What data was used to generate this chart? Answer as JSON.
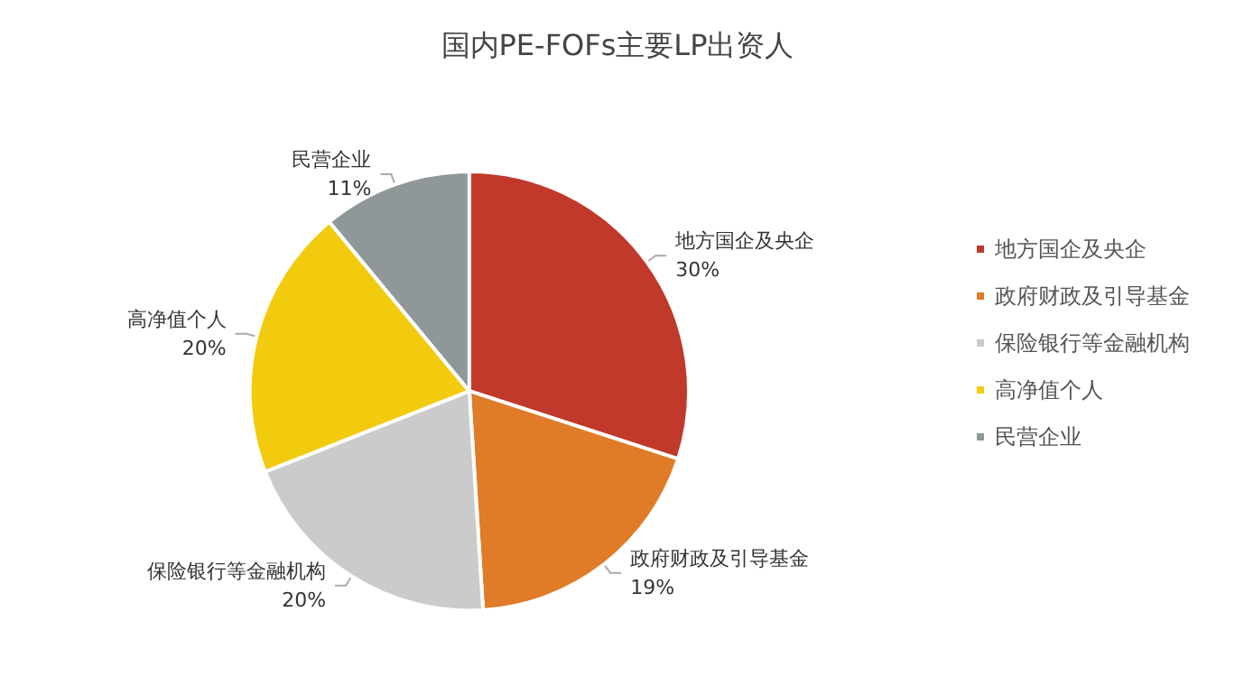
{
  "chart_data": {
    "type": "pie",
    "title": "国内PE-FOFs主要LP出资人",
    "categories": [
      "地方国企及央企",
      "政府财政及引导基金",
      "保险银行等金融机构",
      "高净值个人",
      "民营企业"
    ],
    "values": [
      30,
      19,
      20,
      20,
      11
    ],
    "colors": [
      "#c0392b",
      "#e07b28",
      "#cbcbcb",
      "#f2cb0f",
      "#8f9798"
    ],
    "value_labels": [
      "30%",
      "19%",
      "20%",
      "20%",
      "11%"
    ],
    "legend": "right"
  }
}
